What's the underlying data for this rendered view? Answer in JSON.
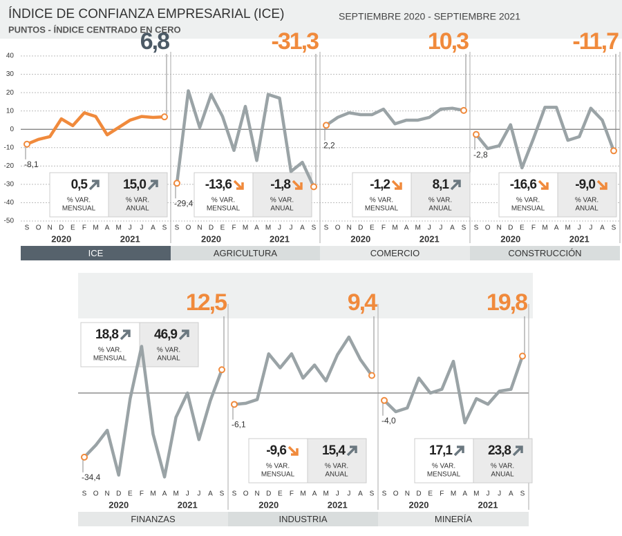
{
  "title": "ÍNDICE DE CONFIANZA EMPRESARIAL (ICE)",
  "subtitle": "PUNTOS - ÍNDICE CENTRADO EN CERO",
  "period": "SEPTIEMBRE 2020 - SEPTIEMBRE 2021",
  "chart_data": [
    {
      "type": "line",
      "title": "ICE",
      "color": "#f08a3c",
      "label_color": "#4c5a66",
      "categories": [
        "S",
        "O",
        "N",
        "D",
        "E",
        "F",
        "M",
        "A",
        "M",
        "J",
        "J",
        "A",
        "S"
      ],
      "years": [
        "2020",
        "2021"
      ],
      "values": [
        -8.1,
        -5.5,
        -4,
        5.7,
        2,
        9,
        7,
        -3,
        1,
        5,
        7,
        6.5,
        6.8
      ],
      "value_labels": [
        "-8,1",
        null,
        null,
        null,
        null,
        null,
        null,
        null,
        null,
        null,
        null,
        null,
        "6,8"
      ],
      "ylim": [
        -50,
        40
      ],
      "yticks": [
        40,
        30,
        20,
        10,
        0,
        -10,
        -20,
        -30,
        -40,
        -50
      ],
      "grid": true,
      "stats": [
        {
          "value": "0,5",
          "label": [
            "% VAR.",
            "MENSUAL"
          ]
        },
        {
          "value": "15,0",
          "label": [
            "% VAR.",
            "ANUAL"
          ]
        }
      ]
    },
    {
      "type": "line",
      "title": "AGRICULTURA",
      "color": "#9aa3a6",
      "label_color": "#f08a3c",
      "categories": [
        "S",
        "O",
        "N",
        "D",
        "E",
        "F",
        "M",
        "A",
        "M",
        "J",
        "J",
        "A",
        "S"
      ],
      "years": [
        "2020",
        "2021"
      ],
      "values": [
        -29.4,
        21,
        1,
        19,
        7,
        -11.5,
        12.5,
        -17,
        19,
        17,
        -23,
        -18,
        -31.3
      ],
      "value_labels": [
        "-29,4",
        null,
        null,
        null,
        null,
        null,
        null,
        null,
        null,
        null,
        null,
        null,
        "-31,3"
      ],
      "ylim": [
        -50,
        40
      ],
      "stats": [
        {
          "value": "-13,6",
          "label": [
            "% VAR.",
            "MENSUAL"
          ]
        },
        {
          "value": "-1,8",
          "label": [
            "% VAR.",
            "ANUAL"
          ]
        }
      ]
    },
    {
      "type": "line",
      "title": "COMERCIO",
      "color": "#9aa3a6",
      "label_color": "#f08a3c",
      "categories": [
        "S",
        "O",
        "N",
        "D",
        "E",
        "F",
        "M",
        "A",
        "M",
        "J",
        "J",
        "A",
        "S"
      ],
      "years": [
        "2020",
        "2021"
      ],
      "values": [
        2.2,
        6.5,
        9,
        8,
        8,
        11,
        3,
        5,
        5,
        6.5,
        11,
        11.5,
        10.3
      ],
      "value_labels": [
        "2,2",
        null,
        null,
        null,
        null,
        null,
        null,
        null,
        null,
        null,
        null,
        null,
        "10,3"
      ],
      "ylim": [
        -50,
        40
      ],
      "stats": [
        {
          "value": "-1,2",
          "label": [
            "% VAR.",
            "MENSUAL"
          ]
        },
        {
          "value": "8,1",
          "label": [
            "% VAR.",
            "ANUAL"
          ]
        }
      ]
    },
    {
      "type": "line",
      "title": "CONSTRUCCIÓN",
      "color": "#9aa3a6",
      "label_color": "#f08a3c",
      "categories": [
        "S",
        "O",
        "N",
        "D",
        "E",
        "F",
        "M",
        "A",
        "M",
        "J",
        "J",
        "A",
        "S"
      ],
      "years": [
        "2020",
        "2021"
      ],
      "values": [
        -2.8,
        -10.5,
        -9,
        2.5,
        -21,
        -5,
        12,
        12,
        -6,
        -4,
        11.5,
        5,
        -11.7
      ],
      "value_labels": [
        "-2,8",
        null,
        null,
        null,
        null,
        null,
        null,
        null,
        null,
        null,
        null,
        null,
        "-11,7"
      ],
      "ylim": [
        -50,
        40
      ],
      "stats": [
        {
          "value": "-16,6",
          "label": [
            "% VAR.",
            "MENSUAL"
          ]
        },
        {
          "value": "-9,0",
          "label": [
            "% VAR.",
            "ANUAL"
          ]
        }
      ]
    },
    {
      "type": "line",
      "title": "FINANZAS",
      "color": "#9aa3a6",
      "label_color": "#f08a3c",
      "categories": [
        "S",
        "O",
        "N",
        "D",
        "E",
        "F",
        "M",
        "A",
        "M",
        "J",
        "J",
        "A",
        "S"
      ],
      "years": [
        "2020",
        "2021"
      ],
      "values": [
        -34.4,
        -28,
        -20,
        -44,
        -3,
        25,
        -22,
        -45,
        -13,
        0,
        -25,
        -4,
        12.5
      ],
      "value_labels": [
        "-34,4",
        null,
        null,
        null,
        null,
        null,
        null,
        null,
        null,
        null,
        null,
        null,
        "12,5"
      ],
      "ylim": [
        -50,
        45
      ],
      "stats": [
        {
          "value": "18,8",
          "label": [
            "% VAR.",
            "MENSUAL"
          ]
        },
        {
          "value": "46,9",
          "label": [
            "% VAR.",
            "ANUAL"
          ]
        }
      ]
    },
    {
      "type": "line",
      "title": "INDUSTRIA",
      "color": "#9aa3a6",
      "label_color": "#f08a3c",
      "categories": [
        "S",
        "O",
        "N",
        "D",
        "E",
        "F",
        "M",
        "A",
        "M",
        "J",
        "J",
        "A",
        "S"
      ],
      "years": [
        "2020",
        "2021"
      ],
      "values": [
        -6.1,
        -5.5,
        -3.5,
        21,
        13.5,
        21,
        8,
        15,
        6.5,
        20.5,
        30,
        18,
        9.4
      ],
      "value_labels": [
        "-6,1",
        null,
        null,
        null,
        null,
        null,
        null,
        null,
        null,
        null,
        null,
        null,
        "9,4"
      ],
      "ylim": [
        -50,
        45
      ],
      "stats": [
        {
          "value": "-9,6",
          "label": [
            "% VAR.",
            "MENSUAL"
          ]
        },
        {
          "value": "15,4",
          "label": [
            "% VAR.",
            "ANUAL"
          ]
        }
      ]
    },
    {
      "type": "line",
      "title": "MINERÍA",
      "color": "#9aa3a6",
      "label_color": "#f08a3c",
      "categories": [
        "S",
        "O",
        "N",
        "D",
        "E",
        "F",
        "M",
        "A",
        "M",
        "J",
        "J",
        "A",
        "S"
      ],
      "years": [
        "2020",
        "2021"
      ],
      "values": [
        -4,
        -10,
        -8,
        8,
        0,
        2,
        17,
        -16,
        -3,
        -6,
        1,
        2,
        19.8
      ],
      "value_labels": [
        "-4,0",
        null,
        null,
        null,
        null,
        null,
        null,
        null,
        null,
        null,
        null,
        null,
        "19,8"
      ],
      "ylim": [
        -50,
        45
      ],
      "stats": [
        {
          "value": "17,1",
          "label": [
            "% VAR.",
            "MENSUAL"
          ]
        },
        {
          "value": "23,8",
          "label": [
            "% VAR.",
            "ANUAL"
          ]
        }
      ]
    }
  ]
}
